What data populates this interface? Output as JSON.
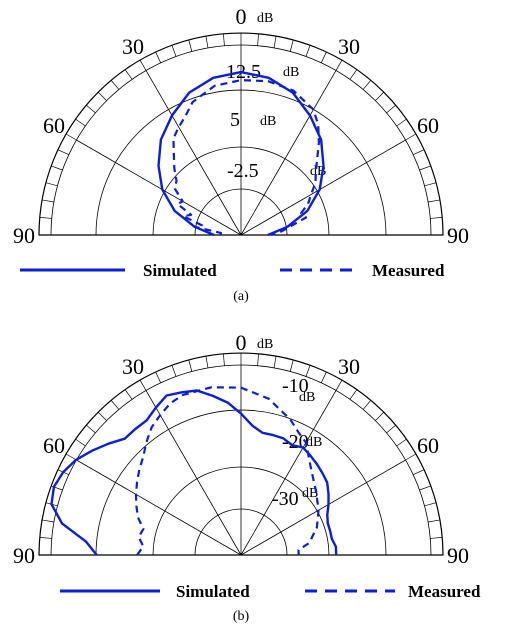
{
  "colors": {
    "series": "#0a1fd6",
    "grid": "#000000",
    "text": "#000000"
  },
  "chart_data": [
    {
      "type": "polar",
      "panel_label": "(a)",
      "angle_ticks": [
        {
          "angle": -90,
          "label": "90"
        },
        {
          "angle": -60,
          "label": "60"
        },
        {
          "angle": -30,
          "label": "30"
        },
        {
          "angle": 0,
          "label": "0"
        },
        {
          "angle": 30,
          "label": "30"
        },
        {
          "angle": 60,
          "label": "60"
        },
        {
          "angle": 90,
          "label": "90"
        }
      ],
      "top_label_unit": "dB",
      "radial_ticks": [
        {
          "value": 12.5,
          "text": "12.5",
          "unit": "dB"
        },
        {
          "value": 5,
          "text": "5",
          "unit": "dB"
        },
        {
          "value": -2.5,
          "text": "-2.5",
          "unit": "dB"
        }
      ],
      "radial_range": [
        -10,
        20
      ],
      "series": [
        {
          "name": "Simulated",
          "style": "solid",
          "points": [
            [
              -90,
              -6
            ],
            [
              -80,
              -3
            ],
            [
              -70,
              0.5
            ],
            [
              -60,
              3.5
            ],
            [
              -50,
              6
            ],
            [
              -40,
              8.5
            ],
            [
              -30,
              10.5
            ],
            [
              -20,
              12.5
            ],
            [
              -10,
              13.7
            ],
            [
              0,
              14.2
            ],
            [
              10,
              13.7
            ],
            [
              20,
              12.5
            ],
            [
              30,
              10.5
            ],
            [
              40,
              8.5
            ],
            [
              50,
              6
            ],
            [
              60,
              3.5
            ],
            [
              70,
              0.5
            ],
            [
              80,
              -3
            ],
            [
              90,
              -6
            ]
          ]
        },
        {
          "name": "Measured",
          "style": "dashed",
          "points": [
            [
              -90,
              -7
            ],
            [
              -84,
              -7
            ],
            [
              -80,
              -3
            ],
            [
              -76,
              -4
            ],
            [
              -72,
              -1
            ],
            [
              -68,
              -2
            ],
            [
              -64,
              0.5
            ],
            [
              -60,
              0
            ],
            [
              -55,
              2
            ],
            [
              -50,
              2.5
            ],
            [
              -45,
              4
            ],
            [
              -40,
              5.5
            ],
            [
              -35,
              7.5
            ],
            [
              -30,
              8.5
            ],
            [
              -25,
              9.5
            ],
            [
              -20,
              11
            ],
            [
              -10,
              12.5
            ],
            [
              0,
              13
            ],
            [
              10,
              13.2
            ],
            [
              20,
              12.8
            ],
            [
              30,
              11.5
            ],
            [
              35,
              10
            ],
            [
              40,
              8
            ],
            [
              45,
              6
            ],
            [
              50,
              4.5
            ],
            [
              55,
              3.5
            ],
            [
              60,
              2
            ],
            [
              65,
              1
            ],
            [
              70,
              -0.5
            ],
            [
              75,
              0
            ],
            [
              80,
              -2.5
            ],
            [
              85,
              -4
            ],
            [
              90,
              -5.5
            ]
          ]
        }
      ]
    },
    {
      "type": "polar",
      "panel_label": "(b)",
      "angle_ticks": [
        {
          "angle": -90,
          "label": "90"
        },
        {
          "angle": -60,
          "label": "60"
        },
        {
          "angle": -30,
          "label": "30"
        },
        {
          "angle": 0,
          "label": "0"
        },
        {
          "angle": 30,
          "label": "30"
        },
        {
          "angle": 60,
          "label": "60"
        },
        {
          "angle": 90,
          "label": "90"
        }
      ],
      "top_label_unit": "dB",
      "radial_ticks": [
        {
          "value": -10,
          "text": "-10",
          "unit": "dB"
        },
        {
          "value": -20,
          "text": "-20",
          "unit": "dB"
        },
        {
          "value": -30,
          "text": "-30",
          "unit": "dB"
        }
      ],
      "radial_range": [
        -40,
        -5
      ],
      "series": [
        {
          "name": "Simulated",
          "style": "solid",
          "points": [
            [
              -90,
              -15
            ],
            [
              -85,
              -13
            ],
            [
              -80,
              -8.5
            ],
            [
              -75,
              -6
            ],
            [
              -70,
              -5.5
            ],
            [
              -65,
              -6
            ],
            [
              -60,
              -7
            ],
            [
              -55,
              -8.5
            ],
            [
              -50,
              -10
            ],
            [
              -45,
              -11.5
            ],
            [
              -40,
              -11.5
            ],
            [
              -35,
              -11.5
            ],
            [
              -30,
              -10.5
            ],
            [
              -25,
              -9.5
            ],
            [
              -20,
              -10
            ],
            [
              -15,
              -10.5
            ],
            [
              -10,
              -12
            ],
            [
              -5,
              -13.5
            ],
            [
              0,
              -15.5
            ],
            [
              5,
              -17.5
            ],
            [
              10,
              -18.5
            ],
            [
              15,
              -18.5
            ],
            [
              20,
              -18.5
            ],
            [
              25,
              -19
            ],
            [
              30,
              -18.5
            ],
            [
              35,
              -19
            ],
            [
              40,
              -19.5
            ],
            [
              45,
              -20
            ],
            [
              50,
              -20.5
            ],
            [
              55,
              -21.5
            ],
            [
              60,
              -22.5
            ],
            [
              65,
              -23.5
            ],
            [
              70,
              -24
            ],
            [
              75,
              -24
            ],
            [
              80,
              -24
            ],
            [
              85,
              -23.5
            ],
            [
              90,
              -23.5
            ]
          ]
        },
        {
          "name": "Measured",
          "style": "dashed",
          "points": [
            [
              -90,
              -22
            ],
            [
              -85,
              -23
            ],
            [
              -80,
              -22
            ],
            [
              -75,
              -22.5
            ],
            [
              -70,
              -21
            ],
            [
              -65,
              -20
            ],
            [
              -60,
              -19
            ],
            [
              -55,
              -18
            ],
            [
              -50,
              -17
            ],
            [
              -45,
              -16
            ],
            [
              -40,
              -14.5
            ],
            [
              -35,
              -13
            ],
            [
              -30,
              -12
            ],
            [
              -25,
              -11
            ],
            [
              -20,
              -10.5
            ],
            [
              -10,
              -10.5
            ],
            [
              0,
              -11
            ],
            [
              10,
              -12.5
            ],
            [
              20,
              -15
            ],
            [
              25,
              -16.5
            ],
            [
              30,
              -17.5
            ],
            [
              40,
              -21
            ],
            [
              50,
              -23
            ],
            [
              60,
              -24.5
            ],
            [
              70,
              -26
            ],
            [
              80,
              -28
            ],
            [
              85,
              -30
            ],
            [
              90,
              -30
            ]
          ]
        }
      ]
    }
  ]
}
